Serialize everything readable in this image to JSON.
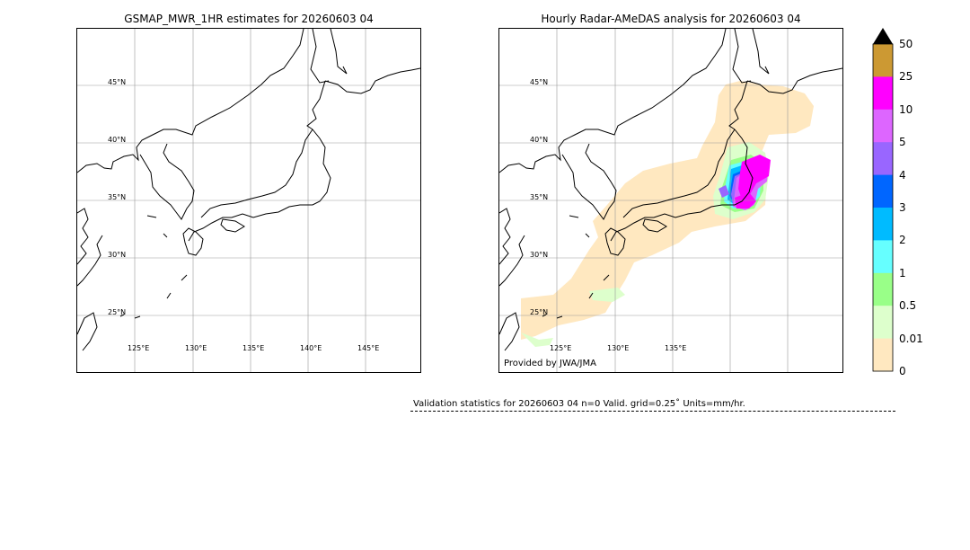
{
  "left_panel": {
    "title": "GSMAP_MWR_1HR estimates for 20260603 04",
    "lat_labels": [
      "45°N",
      "40°N",
      "35°N",
      "30°N",
      "25°N"
    ],
    "lon_labels": [
      "125°E",
      "130°E",
      "135°E",
      "140°E",
      "145°E"
    ]
  },
  "right_panel": {
    "title": "Hourly Radar-AMeDAS analysis for 20260603 04",
    "lat_labels": [
      "45°N",
      "40°N",
      "35°N",
      "30°N",
      "25°N"
    ],
    "lon_labels": [
      "125°E",
      "130°E",
      "135°E"
    ],
    "credit": "Provided by JWA/JMA"
  },
  "colorbar": {
    "levels": [
      "50",
      "25",
      "10",
      "5",
      "4",
      "3",
      "2",
      "1",
      "0.5",
      "0.01",
      "0"
    ],
    "colors": [
      "#cc9933",
      "#ff00ff",
      "#dd66ff",
      "#9966ff",
      "#0066ff",
      "#00bbff",
      "#66ffff",
      "#99ff88",
      "#ddffcc",
      "#ffe8c0"
    ],
    "over_color": "#000000"
  },
  "stats": {
    "text": "Validation statistics for 20260603 04  n=0 Valid. grid=0.25˚ Units=mm/hr."
  }
}
